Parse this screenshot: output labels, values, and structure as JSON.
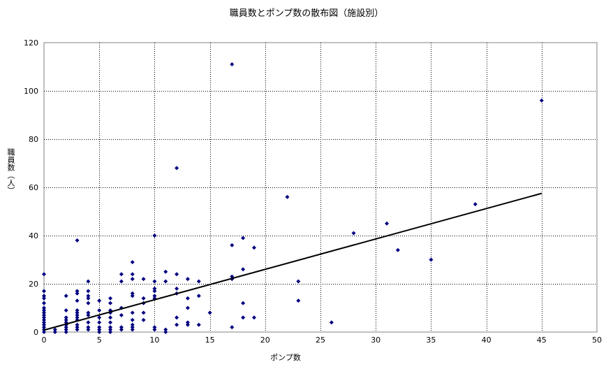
{
  "chart_data": {
    "type": "scatter",
    "title": "職員数とポンプ数の散布図（施設別）",
    "xlabel": "ポンプ数",
    "ylabel": "職員数（人）",
    "xlim": [
      0,
      50
    ],
    "ylim": [
      0,
      120
    ],
    "x_ticks": [
      "0",
      "5",
      "10",
      "15",
      "20",
      "25",
      "30",
      "35",
      "40",
      "45",
      "50"
    ],
    "y_ticks": [
      "0",
      "20",
      "40",
      "60",
      "80",
      "100",
      "120"
    ],
    "grid": "dashed",
    "legend": "none",
    "marker_color": "#000080",
    "trendline_color": "#000000",
    "plot_border_color": "#808080",
    "grid_color": "#000000",
    "trendline": {
      "x": [
        0,
        45
      ],
      "y": [
        0.8,
        57.5
      ]
    },
    "series": [
      {
        "points": [
          [
            17,
            111
          ],
          [
            45,
            96
          ],
          [
            12,
            68
          ],
          [
            22,
            56
          ],
          [
            39,
            53
          ],
          [
            28,
            41
          ],
          [
            31,
            45
          ],
          [
            32,
            34
          ],
          [
            35,
            30
          ],
          [
            17,
            36
          ],
          [
            18,
            39
          ],
          [
            19,
            35
          ],
          [
            17,
            23
          ],
          [
            17,
            22
          ],
          [
            18,
            26
          ],
          [
            23,
            21
          ],
          [
            23,
            13
          ],
          [
            26,
            4
          ],
          [
            17,
            2
          ],
          [
            18,
            12
          ],
          [
            18,
            6
          ],
          [
            19,
            6
          ],
          [
            15,
            8
          ],
          [
            14,
            21
          ],
          [
            14,
            15
          ],
          [
            14,
            3
          ],
          [
            13,
            22
          ],
          [
            13,
            14
          ],
          [
            13,
            10
          ],
          [
            13,
            4
          ],
          [
            13,
            3
          ],
          [
            12,
            24
          ],
          [
            12,
            18
          ],
          [
            12,
            16
          ],
          [
            12,
            6
          ],
          [
            12,
            3
          ],
          [
            11,
            25
          ],
          [
            11,
            21
          ],
          [
            11,
            1
          ],
          [
            11,
            0
          ],
          [
            10,
            40
          ],
          [
            10,
            21
          ],
          [
            10,
            18
          ],
          [
            10,
            17
          ],
          [
            10,
            15
          ],
          [
            10,
            14
          ],
          [
            10,
            2
          ],
          [
            10,
            1
          ],
          [
            9,
            22
          ],
          [
            9,
            14
          ],
          [
            9,
            12
          ],
          [
            9,
            8
          ],
          [
            9,
            5
          ],
          [
            8,
            29
          ],
          [
            8,
            24
          ],
          [
            8,
            22
          ],
          [
            8,
            16
          ],
          [
            8,
            15
          ],
          [
            8,
            8
          ],
          [
            8,
            5
          ],
          [
            8,
            3
          ],
          [
            8,
            2
          ],
          [
            8,
            1
          ],
          [
            7,
            24
          ],
          [
            7,
            21
          ],
          [
            7,
            10
          ],
          [
            7,
            7
          ],
          [
            7,
            2
          ],
          [
            7,
            1
          ],
          [
            6,
            14
          ],
          [
            6,
            12
          ],
          [
            6,
            9
          ],
          [
            6,
            8
          ],
          [
            6,
            6
          ],
          [
            6,
            4
          ],
          [
            6,
            2
          ],
          [
            6,
            1
          ],
          [
            6,
            0
          ],
          [
            5,
            13
          ],
          [
            5,
            9
          ],
          [
            5,
            6
          ],
          [
            5,
            4
          ],
          [
            5,
            2
          ],
          [
            5,
            1
          ],
          [
            5,
            0
          ],
          [
            4,
            21
          ],
          [
            4,
            17
          ],
          [
            4,
            15
          ],
          [
            4,
            14
          ],
          [
            4,
            12
          ],
          [
            4,
            8
          ],
          [
            4,
            7
          ],
          [
            4,
            4
          ],
          [
            4,
            2
          ],
          [
            4,
            1
          ],
          [
            3,
            38
          ],
          [
            3,
            17
          ],
          [
            3,
            16
          ],
          [
            3,
            13
          ],
          [
            3,
            9
          ],
          [
            3,
            8
          ],
          [
            3,
            7
          ],
          [
            3,
            6
          ],
          [
            3,
            5
          ],
          [
            3,
            3
          ],
          [
            3,
            2
          ],
          [
            3,
            1
          ],
          [
            2,
            15
          ],
          [
            2,
            9
          ],
          [
            2,
            6
          ],
          [
            2,
            5
          ],
          [
            2,
            4
          ],
          [
            2,
            3
          ],
          [
            2,
            2
          ],
          [
            2,
            1
          ],
          [
            2,
            0
          ],
          [
            1,
            1
          ],
          [
            1,
            0
          ],
          [
            0,
            24
          ],
          [
            0,
            17
          ],
          [
            0,
            15
          ],
          [
            0,
            14
          ],
          [
            0,
            12
          ],
          [
            0,
            10
          ],
          [
            0,
            9
          ],
          [
            0,
            8
          ],
          [
            0,
            7
          ],
          [
            0,
            6
          ],
          [
            0,
            5
          ],
          [
            0,
            4
          ],
          [
            0,
            3
          ],
          [
            0,
            2
          ],
          [
            0,
            1
          ],
          [
            0,
            0
          ]
        ]
      }
    ]
  }
}
